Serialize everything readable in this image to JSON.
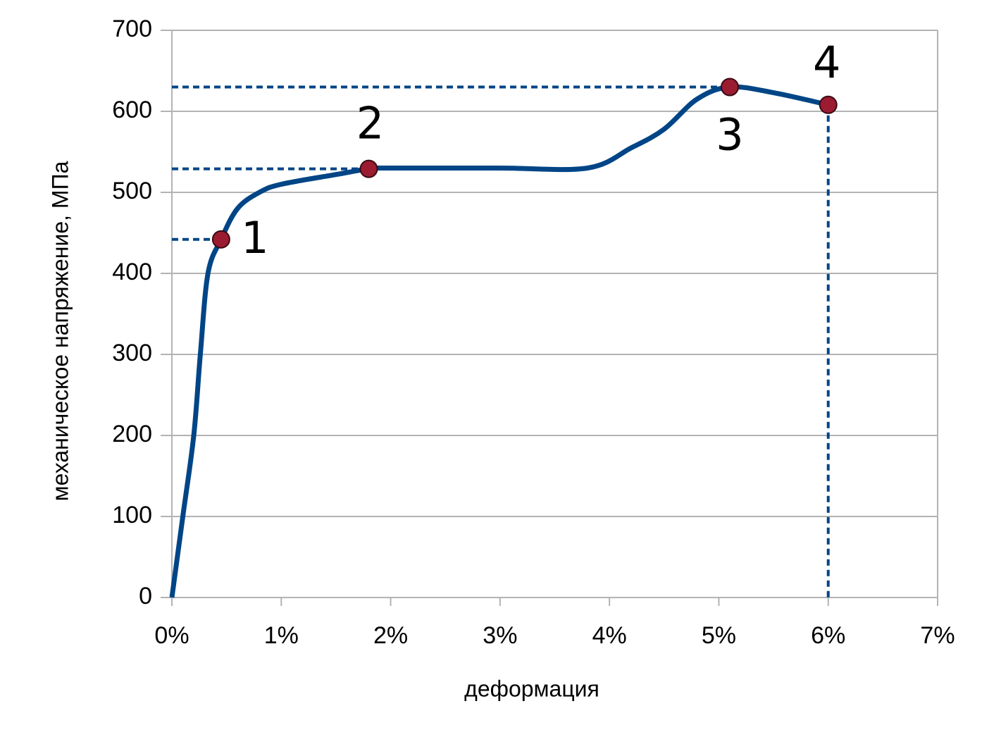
{
  "chart_data": {
    "type": "line",
    "x_label": "деформация",
    "y_label": "механическое напряжение, МПа",
    "series": [
      {
        "color": "#004586",
        "x": [
          0,
          0.1,
          0.2,
          0.26,
          0.33,
          0.45,
          0.6,
          0.8,
          1.0,
          1.5,
          1.8,
          2.0,
          3.0,
          3.8,
          4.2,
          4.5,
          4.8,
          5.1,
          5.5,
          6.0
        ],
        "values": [
          0,
          100,
          200,
          300,
          400,
          442,
          480,
          500,
          510,
          522,
          529,
          530,
          530,
          530,
          555,
          578,
          615,
          630,
          623,
          608
        ]
      }
    ],
    "markers": {
      "color": "#9b1c31",
      "x": [
        0.45,
        1.8,
        5.1,
        6.0
      ],
      "values": [
        442,
        529,
        630,
        608
      ],
      "labels": [
        "1",
        "2",
        "3",
        "4"
      ]
    },
    "guide_color": "#004586",
    "xlim": [
      0,
      7
    ],
    "xticks": [
      {
        "value": 0,
        "label": "0%"
      },
      {
        "value": 1,
        "label": "1%"
      },
      {
        "value": 2,
        "label": "2%"
      },
      {
        "value": 3,
        "label": "3%"
      },
      {
        "value": 4,
        "label": "4%"
      },
      {
        "value": 5,
        "label": "5%"
      },
      {
        "value": 6,
        "label": "6%"
      },
      {
        "value": 7,
        "label": "7%"
      }
    ],
    "ylim": [
      0,
      700
    ],
    "yticks": [
      0,
      100,
      200,
      300,
      400,
      500,
      600,
      700
    ],
    "grid": true
  }
}
